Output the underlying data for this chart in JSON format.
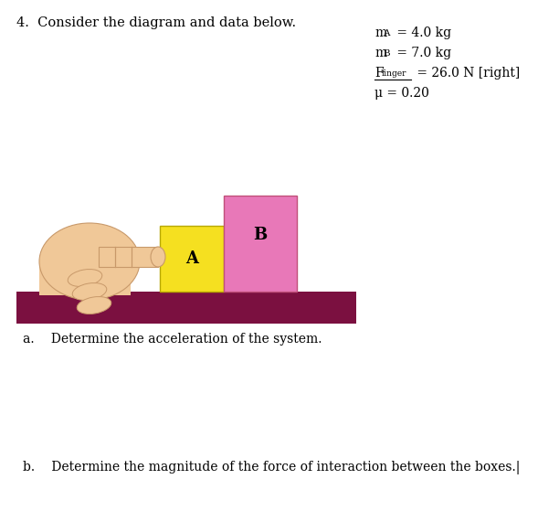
{
  "title": "4.  Consider the diagram and data below.",
  "title_fontsize": 10.5,
  "background_color": "#ffffff",
  "table_color": "#7b1040",
  "box_A_color": "#f5e020",
  "box_B_color": "#e878b8",
  "box_A_label": "A",
  "box_B_label": "B",
  "hand_color": "#f0c898",
  "hand_edge_color": "#c8996a",
  "question_a": "a.  Determine the acceleration of the system.",
  "question_b": "b.  Determine the magnitude of the force of interaction between the boxes.|",
  "text_fontsize": 10.0,
  "data_text": [
    {
      "label": "m",
      "sub": "A",
      "value": " = 4.0 kg"
    },
    {
      "label": "m",
      "sub": "B",
      "value": " = 7.0 kg"
    },
    {
      "label": "F",
      "sub": "finger",
      "value": " = 26.0 N [right]",
      "underline": true
    },
    {
      "label": "μ",
      "sub": "",
      "value": " = 0.20"
    }
  ]
}
